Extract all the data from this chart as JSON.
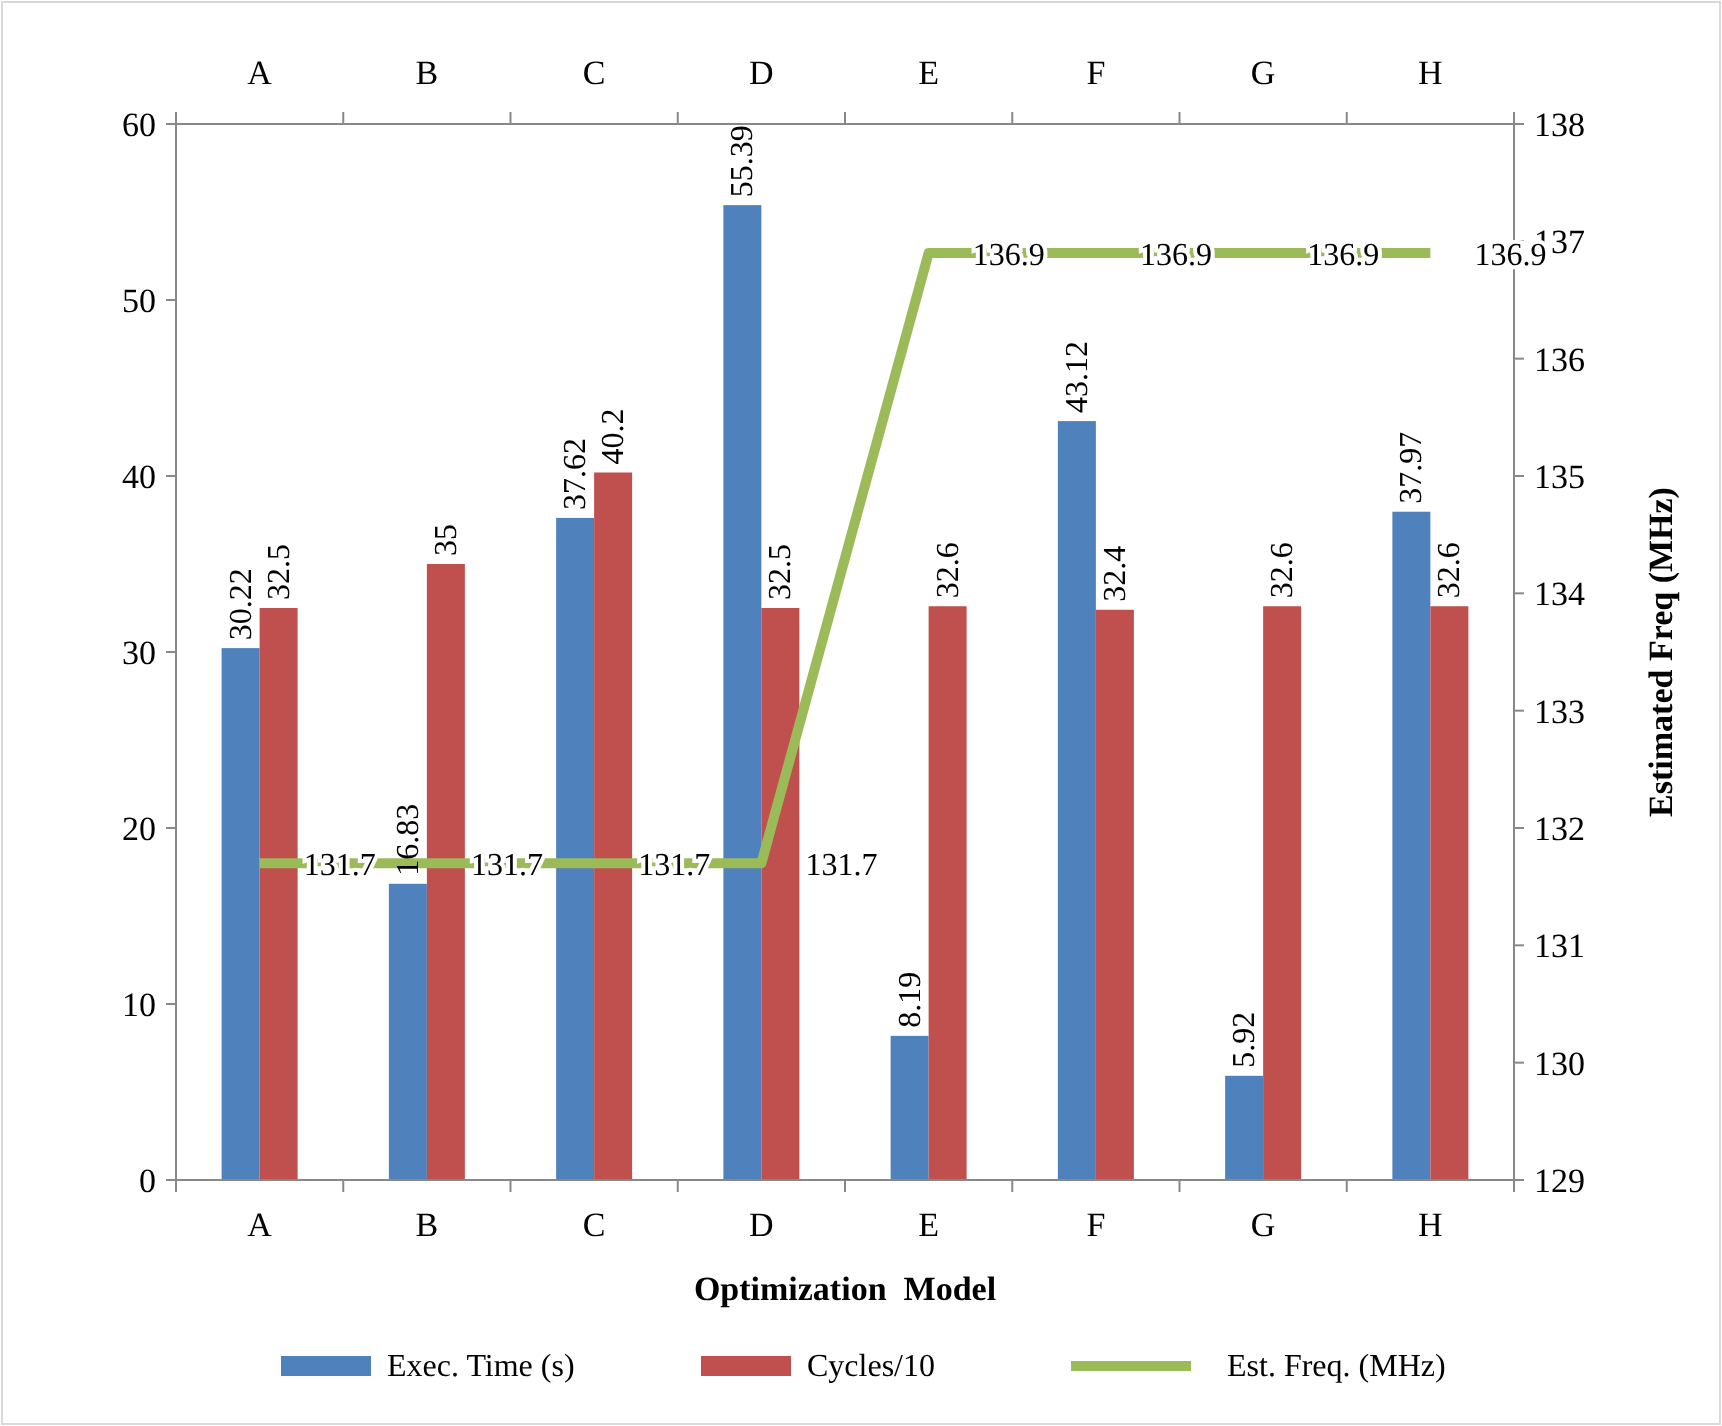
{
  "chart_data": {
    "type": "bar",
    "xlabel": "Optimization  Model",
    "y2label": "Estimated Freq (MHz)",
    "categories": [
      "A",
      "B",
      "C",
      "D",
      "E",
      "F",
      "G",
      "H"
    ],
    "series": [
      {
        "name": "Exec. Time (s)",
        "color": "#4f81bd",
        "values": [
          30.22,
          16.83,
          37.62,
          55.39,
          8.19,
          43.12,
          5.92,
          37.97
        ]
      },
      {
        "name": "Cycles/10",
        "color": "#c0504d",
        "values": [
          32.5,
          35,
          40.2,
          32.5,
          32.6,
          32.4,
          32.6,
          32.6
        ]
      },
      {
        "name": "Est. Freq. (MHz)",
        "type": "line",
        "axis": "y2",
        "color": "#9bbb59",
        "values": [
          131.7,
          131.7,
          131.7,
          131.7,
          136.9,
          136.9,
          136.9,
          136.9
        ]
      }
    ],
    "ylim": [
      0,
      60
    ],
    "yticks": [
      0,
      10,
      20,
      30,
      40,
      50,
      60
    ],
    "y2lim": [
      129,
      138
    ],
    "y2ticks": [
      129,
      130,
      131,
      132,
      133,
      134,
      135,
      136,
      137,
      138
    ],
    "data_labels": true,
    "legend": "bottom",
    "marker": "none",
    "grid": false
  }
}
